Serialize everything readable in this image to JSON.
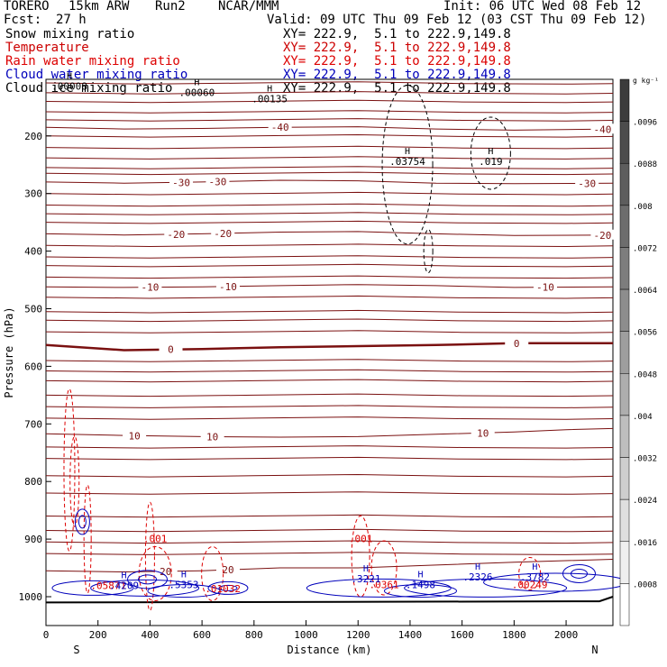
{
  "header": {
    "model": "TORERO",
    "resolution": "15km ARW",
    "run": "Run2",
    "org": "NCAR/MMM",
    "init": "Init: 06 UTC Wed 08 Feb 12",
    "fcst_label": "Fcst:",
    "fcst_value": "27 h",
    "valid": "Valid: 09 UTC Thu 09 Feb 12 (03 CST Thu 09 Feb 12)"
  },
  "fields": [
    {
      "name": "Snow mixing ratio",
      "xy": "XY= 222.9,  5.1 to 222.9,149.8",
      "color": "#000000",
      "xy_color": "#000000"
    },
    {
      "name": "Temperature",
      "xy": "XY= 222.9,  5.1 to 222.9,149.8",
      "color": "#cc0000",
      "xy_color": "#cc0000"
    },
    {
      "name": "Rain water mixing ratio",
      "xy": "XY= 222.9,  5.1 to 222.9,149.8",
      "color": "#dd0000",
      "xy_color": "#dd0000"
    },
    {
      "name": "Cloud water mixing ratio",
      "xy": "XY= 222.9,  5.1 to 222.9,149.8",
      "color": "#0000bb",
      "xy_color": "#0000bb"
    },
    {
      "name": "Cloud ice mixing ratio",
      "xy": "XY= 222.9,  5.1 to 222.9,149.8",
      "color": "#000000",
      "xy_color": "#000000"
    }
  ],
  "chart_data": {
    "type": "contour cross-section",
    "xlabel": "Distance (km)",
    "ylabel": "Pressure (hPa)",
    "xlim": [
      0,
      2180
    ],
    "ylim": [
      1050,
      100
    ],
    "x_ticks": [
      0,
      200,
      400,
      600,
      800,
      1000,
      1200,
      1400,
      1600,
      1800,
      2000
    ],
    "y_ticks": [
      200,
      300,
      400,
      500,
      600,
      700,
      800,
      900,
      1000
    ],
    "left_end_label": "S",
    "right_end_label": "N",
    "colorbar": {
      "unit": "g kg⁻¹",
      "labels": [
        ".0096",
        ".0088",
        ".008",
        ".0072",
        ".0064",
        ".0056",
        ".0048",
        ".004",
        ".0032",
        ".0024",
        ".0016",
        ".0008"
      ]
    },
    "temperature_isotherms": [
      {
        "value": -40,
        "label": "-40",
        "points": [
          [
            0,
            185
          ],
          [
            300,
            188
          ],
          [
            600,
            187
          ],
          [
            900,
            185
          ],
          [
            1200,
            184
          ],
          [
            1500,
            188
          ],
          [
            1800,
            190
          ],
          [
            2180,
            188
          ]
        ]
      },
      {
        "value": -30,
        "label": "-30",
        "points": [
          [
            0,
            280
          ],
          [
            300,
            282
          ],
          [
            600,
            280
          ],
          [
            900,
            277
          ],
          [
            1200,
            278
          ],
          [
            1500,
            282
          ],
          [
            1800,
            283
          ],
          [
            2180,
            282
          ]
        ]
      },
      {
        "value": -20,
        "label": "-20",
        "points": [
          [
            0,
            370
          ],
          [
            300,
            372
          ],
          [
            600,
            370
          ],
          [
            900,
            367
          ],
          [
            1200,
            366
          ],
          [
            1500,
            370
          ],
          [
            1800,
            373
          ],
          [
            2180,
            372
          ]
        ]
      },
      {
        "value": -10,
        "label": "-10",
        "points": [
          [
            0,
            462
          ],
          [
            300,
            463
          ],
          [
            600,
            462
          ],
          [
            900,
            460
          ],
          [
            1200,
            458
          ],
          [
            1500,
            460
          ],
          [
            1800,
            463
          ],
          [
            2180,
            462
          ]
        ]
      },
      {
        "value": 0,
        "label": "0",
        "points": [
          [
            0,
            563
          ],
          [
            300,
            572
          ],
          [
            600,
            570
          ],
          [
            900,
            567
          ],
          [
            1200,
            565
          ],
          [
            1500,
            563
          ],
          [
            1800,
            560
          ],
          [
            2180,
            560
          ]
        ]
      },
      {
        "value": 10,
        "label": "10",
        "points": [
          [
            0,
            717
          ],
          [
            300,
            720
          ],
          [
            600,
            722
          ],
          [
            900,
            723
          ],
          [
            1200,
            722
          ],
          [
            1500,
            718
          ],
          [
            1800,
            714
          ],
          [
            2000,
            710
          ],
          [
            2180,
            708
          ]
        ]
      },
      {
        "value": 20,
        "label": "20",
        "points": [
          [
            0,
            955
          ],
          [
            300,
            957
          ],
          [
            600,
            955
          ],
          [
            900,
            950
          ],
          [
            1200,
            950
          ],
          [
            1500,
            945
          ],
          [
            1800,
            940
          ],
          [
            2180,
            935
          ]
        ]
      }
    ],
    "extra_isotherms_hpa": [
      108,
      125,
      140,
      158,
      172,
      200,
      220,
      238,
      255,
      265,
      300,
      320,
      335,
      350,
      390,
      410,
      425,
      445,
      480,
      505,
      520,
      540,
      590,
      608,
      625,
      650,
      670,
      690,
      740,
      760,
      790,
      820,
      860,
      885,
      905,
      925
    ],
    "snow_maxima": [
      {
        "label": ".00008",
        "x": 90,
        "p": 120
      },
      {
        "label": ".00060",
        "x": 580,
        "p": 131
      },
      {
        "label": ".00135",
        "x": 860,
        "p": 142
      },
      {
        "label": ".03754",
        "x": 1390,
        "p": 250
      },
      {
        "label": ".019",
        "x": 1710,
        "p": 250
      }
    ],
    "rain_maxima": [
      {
        "label": ".001",
        "x": 420,
        "p": 905
      },
      {
        "label": ".001",
        "x": 1210,
        "p": 905
      },
      {
        "label": ".05871",
        "x": 240,
        "p": 987
      },
      {
        "label": ".01032",
        "x": 680,
        "p": 992
      },
      {
        "label": ".0361",
        "x": 1300,
        "p": 985
      },
      {
        "label": ".00249",
        "x": 1860,
        "p": 985
      }
    ],
    "cloud_water_maxima": [
      {
        "label": ".4209",
        "x": 300,
        "p": 987
      },
      {
        "label": ".5353",
        "x": 530,
        "p": 985
      },
      {
        "label": ".3221",
        "x": 1230,
        "p": 975
      },
      {
        "label": ".1498",
        "x": 1440,
        "p": 985
      },
      {
        "label": ".2326",
        "x": 1660,
        "p": 972
      },
      {
        "label": ".3782",
        "x": 1880,
        "p": 972
      }
    ]
  }
}
